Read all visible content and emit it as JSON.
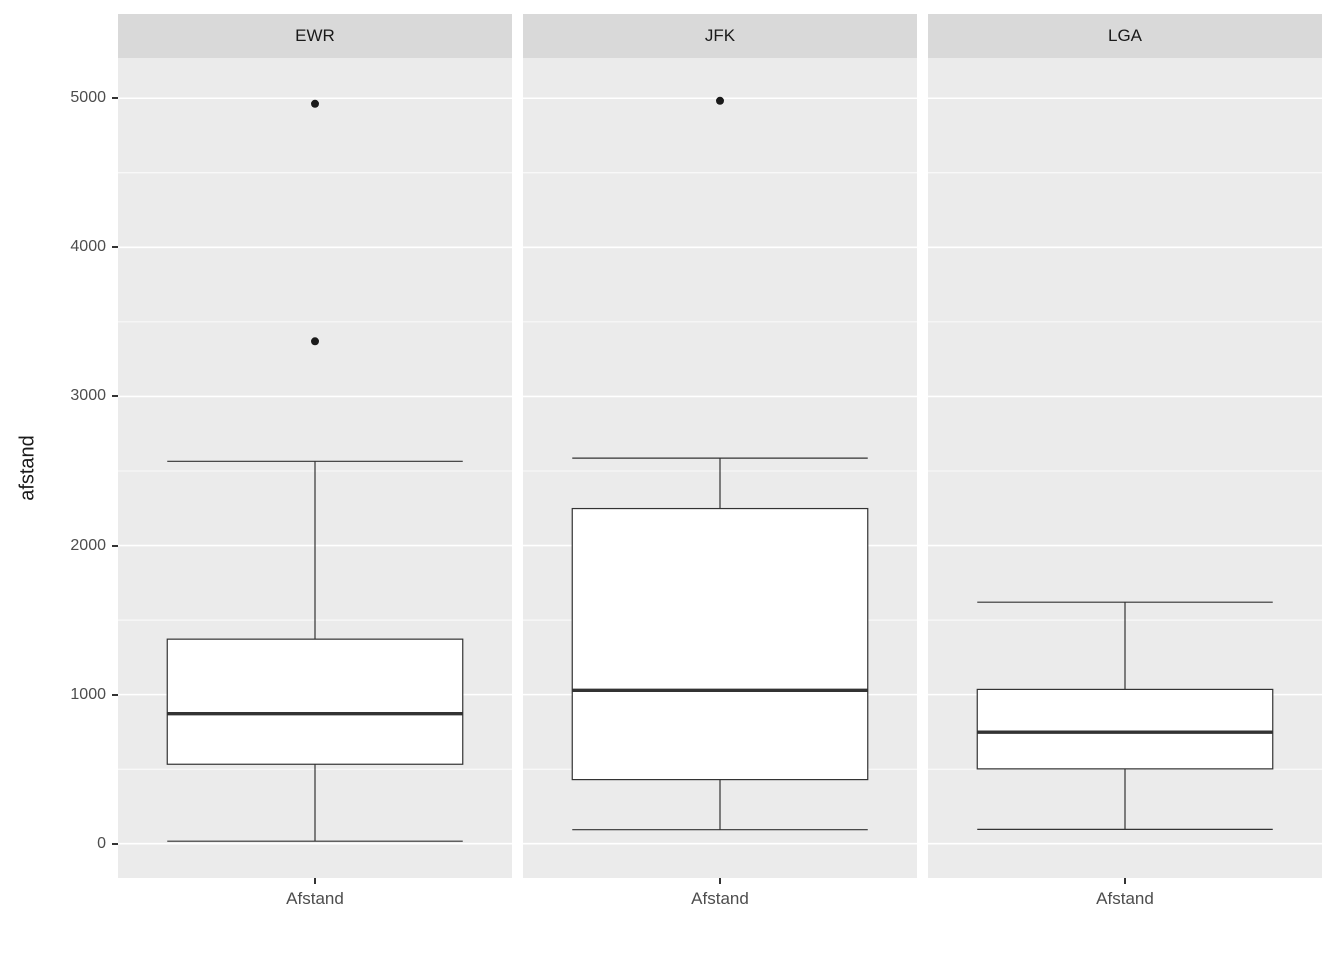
{
  "chart_data": {
    "type": "boxplot",
    "title": "",
    "xlabel": "",
    "ylabel": "afstand",
    "yticks": [
      0,
      1000,
      2000,
      3000,
      4000,
      5000
    ],
    "y_minor_breaks": [
      500,
      1500,
      2500,
      3500,
      4500
    ],
    "ylim": [
      -230,
      5270
    ],
    "legend": "none",
    "grid": "on",
    "facets": [
      {
        "label": "EWR",
        "x_category": "Afstand",
        "stats": {
          "lower_whisker": 17,
          "q1": 533,
          "median": 872,
          "q3": 1372,
          "upper_whisker": 2565
        },
        "outliers": [
          3370,
          4963
        ]
      },
      {
        "label": "JFK",
        "x_category": "Afstand",
        "stats": {
          "lower_whisker": 94,
          "q1": 430,
          "median": 1029,
          "q3": 2248,
          "upper_whisker": 2586
        },
        "outliers": [
          4983
        ]
      },
      {
        "label": "LGA",
        "x_category": "Afstand",
        "stats": {
          "lower_whisker": 96,
          "q1": 502,
          "median": 748,
          "q3": 1035,
          "upper_whisker": 1620
        },
        "outliers": []
      }
    ],
    "colors": {
      "panel_bg": "#EBEBEB",
      "strip_bg": "#D9D9D9",
      "grid_major": "#FFFFFF",
      "grid_minor": "#FFFFFF",
      "box_fill": "#FFFFFF",
      "box_stroke": "#333333",
      "outlier": "#1A1A1A",
      "axis_text": "#4D4D4D",
      "axis_title": "#1A1A1A",
      "tick_mark": "#333333"
    }
  }
}
